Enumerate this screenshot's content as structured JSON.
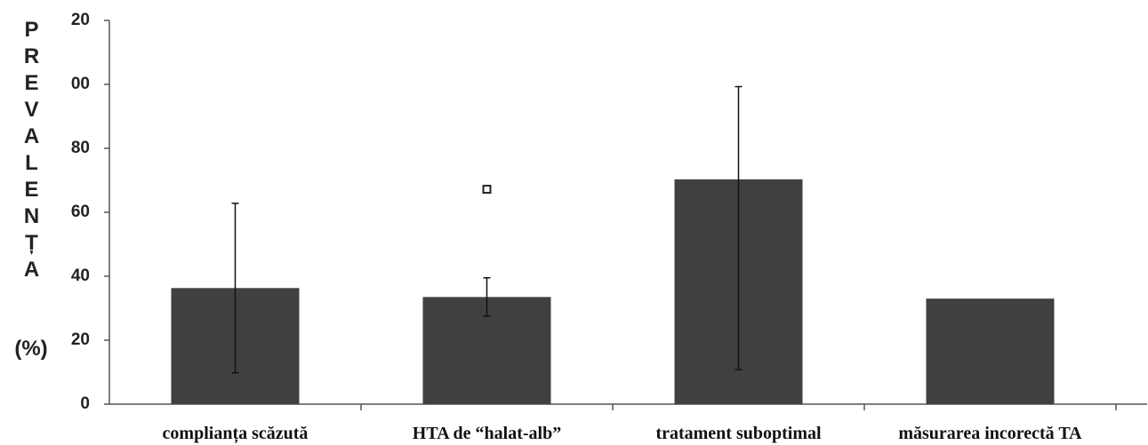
{
  "chart_data": {
    "type": "bar",
    "ylabel": "PREVALENȚA",
    "ylabel_unit": "(%)",
    "categories": [
      "complianța scăzută",
      "HTA de “halat-alb”",
      "tratament suboptimal",
      "măsurarea incorectă TA"
    ],
    "values": [
      36.3,
      33.5,
      70.3,
      33
    ],
    "errors_minus": [
      26.5,
      6,
      59.5,
      null
    ],
    "errors_plus": [
      26.5,
      6,
      29,
      null
    ],
    "outliers": [
      null,
      67.2,
      null,
      null
    ],
    "color": "#404040",
    "ylim": [
      0,
      120
    ],
    "yticks": [
      0,
      20,
      40,
      60,
      80,
      {
        "value": 100,
        "label": "00"
      },
      {
        "value": 120,
        "label": "20"
      }
    ]
  }
}
